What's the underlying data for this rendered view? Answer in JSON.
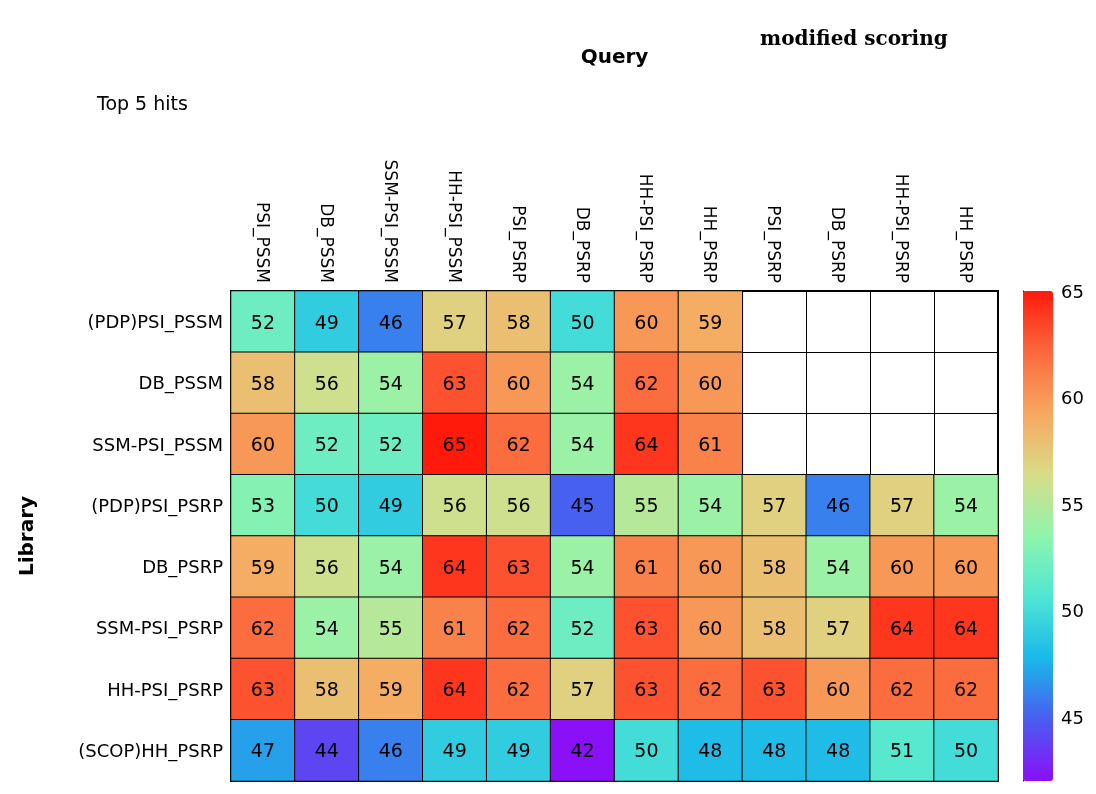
{
  "chart_data": {
    "type": "heatmap",
    "title": "Top 5 hits",
    "xlabel": "Query",
    "ylabel": "Library",
    "annotations": [
      "modified scoring"
    ],
    "categories": [
      "PSI_PSSM",
      "DB_PSSM",
      "SSM-PSI_PSSM",
      "HH-PSI_PSSM",
      "PSI_PSRP",
      "DB_PSRP",
      "HH-PSI_PSRP",
      "HH_PSRP",
      "PSI_PSRP",
      "DB_PSRP",
      "HH-PSI_PSRP",
      "HH_PSRP"
    ],
    "y_categories": [
      "(PDP)PSI_PSSM",
      "DB_PSSM",
      "SSM-PSI_PSSM",
      "(PDP)PSI_PSRP",
      "DB_PSRP",
      "SSM-PSI_PSRP",
      "HH-PSI_PSRP",
      "(SCOP)HH_PSRP"
    ],
    "cells": [
      [
        52,
        49,
        46,
        57,
        58,
        50,
        60,
        59,
        null,
        null,
        null,
        null
      ],
      [
        58,
        56,
        54,
        63,
        60,
        54,
        62,
        60,
        null,
        null,
        null,
        null
      ],
      [
        60,
        52,
        52,
        65,
        62,
        54,
        64,
        61,
        null,
        null,
        null,
        null
      ],
      [
        53,
        50,
        49,
        56,
        56,
        45,
        55,
        54,
        57,
        46,
        57,
        54
      ],
      [
        59,
        56,
        54,
        64,
        63,
        54,
        61,
        60,
        58,
        54,
        60,
        60
      ],
      [
        62,
        54,
        55,
        61,
        62,
        52,
        63,
        60,
        58,
        57,
        64,
        64
      ],
      [
        63,
        58,
        59,
        64,
        62,
        57,
        63,
        62,
        63,
        60,
        62,
        62
      ],
      [
        47,
        44,
        46,
        49,
        49,
        42,
        50,
        48,
        48,
        48,
        51,
        50
      ]
    ],
    "data_labels": true,
    "clim": [
      42,
      65
    ],
    "cticks": [
      45,
      50,
      55,
      60,
      65
    ]
  }
}
